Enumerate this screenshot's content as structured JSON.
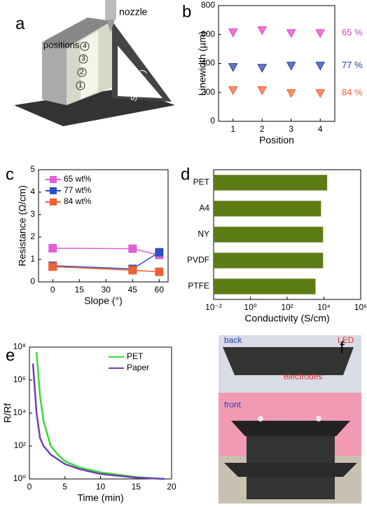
{
  "panels": {
    "a": {
      "letter": "a",
      "nozzle": "nozzle",
      "positions": "positions",
      "slope": "Slope (°)",
      "marks": [
        "1",
        "2",
        "3",
        "4"
      ]
    },
    "f": {
      "letter": "f",
      "back": "back",
      "led": "LED",
      "electrodes": "electrodes",
      "front": "front"
    }
  },
  "chart_data": [
    {
      "type": "scatter",
      "panel_label": "b",
      "xlabel": "Position",
      "ylabel": "Linewidth (µm)",
      "x": [
        1,
        2,
        3,
        4
      ],
      "xlim": [
        0.5,
        4.5
      ],
      "xticks": [
        1,
        2,
        3,
        4
      ],
      "ylim": [
        0,
        800
      ],
      "yticks": [
        0,
        200,
        400,
        600,
        800
      ],
      "series": [
        {
          "name": "65 %",
          "color": "#e040c8",
          "values": [
            615,
            630,
            610,
            610
          ]
        },
        {
          "name": "77 %",
          "color": "#2040a0",
          "values": [
            375,
            370,
            385,
            385
          ]
        },
        {
          "name": "84 %",
          "color": "#f06030",
          "values": [
            215,
            215,
            195,
            195
          ]
        }
      ]
    },
    {
      "type": "line",
      "panel_label": "c",
      "xlabel": "Slope (°)",
      "ylabel": "Resistance (Ω/cm)",
      "x": [
        0,
        45,
        60
      ],
      "xlim": [
        -8,
        65
      ],
      "xticks": [
        0,
        15,
        30,
        45,
        60
      ],
      "ylim": [
        0,
        5
      ],
      "yticks": [
        0,
        1,
        2,
        3,
        4,
        5
      ],
      "legend": "upper left",
      "series": [
        {
          "name": "65 wt%",
          "color": "#e060d8",
          "values": [
            1.5,
            1.48,
            1.2
          ]
        },
        {
          "name": "77 wt%",
          "color": "#3050c0",
          "values": [
            0.72,
            0.58,
            1.32
          ]
        },
        {
          "name": "84 wt%",
          "color": "#f06030",
          "values": [
            0.68,
            0.52,
            0.45
          ]
        }
      ]
    },
    {
      "type": "hbar",
      "panel_label": "d",
      "xlabel": "Conductivity (S/cm)",
      "xlog": true,
      "color": "#5e7c16",
      "categories": [
        "PET",
        "A4",
        "NY",
        "PVDF",
        "PTFE"
      ],
      "values": [
        15000,
        7000,
        9000,
        9000,
        3500
      ],
      "xlim": [
        0.01,
        1000000
      ],
      "xticks": [
        {
          "value": 0.01,
          "label": "10⁻²"
        },
        {
          "value": 1,
          "label": "10⁰"
        },
        {
          "value": 100,
          "label": "10²"
        },
        {
          "value": 10000,
          "label": "10⁴"
        },
        {
          "value": 1000000,
          "label": "10⁶"
        }
      ]
    },
    {
      "type": "xyline",
      "panel_label": "e",
      "xlabel": "Time (min)",
      "ylabel": "R/Rf",
      "ylog": true,
      "legend": "upper right",
      "xlim": [
        0,
        20
      ],
      "xticks": [
        0,
        5,
        10,
        15,
        20
      ],
      "ylim": [
        1,
        100000000
      ],
      "yticks": [
        {
          "value": 1,
          "label": "10⁰"
        },
        {
          "value": 100,
          "label": "10²"
        },
        {
          "value": 10000,
          "label": "10⁴"
        },
        {
          "value": 1000000,
          "label": "10⁶"
        },
        {
          "value": 100000000,
          "label": "10⁸"
        }
      ],
      "series": [
        {
          "name": "PET",
          "color": "#30e030",
          "x": [
            1,
            1.5,
            2,
            3,
            4,
            5,
            7,
            10,
            15,
            19
          ],
          "values": [
            50000000,
            100000,
            3000,
            100,
            30,
            12,
            5,
            2.5,
            1.3,
            1
          ]
        },
        {
          "name": "Paper",
          "color": "#7040b0",
          "x": [
            0.5,
            1,
            1.5,
            2,
            3,
            5,
            7,
            10,
            15,
            19
          ],
          "values": [
            10000000,
            10000,
            300,
            100,
            30,
            8,
            4,
            2,
            1.2,
            1
          ]
        }
      ]
    }
  ]
}
